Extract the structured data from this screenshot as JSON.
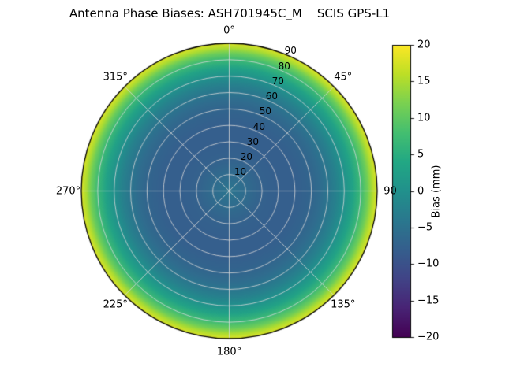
{
  "chart_data": {
    "type": "heatmap",
    "projection": "polar",
    "title": "Antenna Phase Biases: ASH701945C_M    SCIS GPS-L1",
    "azimuth_ticks": [
      {
        "angle_deg": 0,
        "label": "0°"
      },
      {
        "angle_deg": 45,
        "label": "45°"
      },
      {
        "angle_deg": 90,
        "label": "90"
      },
      {
        "angle_deg": 135,
        "label": "135°"
      },
      {
        "angle_deg": 180,
        "label": "180°"
      },
      {
        "angle_deg": 225,
        "label": "225°"
      },
      {
        "angle_deg": 270,
        "label": "270°"
      },
      {
        "angle_deg": 315,
        "label": "315°"
      }
    ],
    "radial_axis": {
      "max": 90,
      "ring_interval": 10,
      "label_angle_deg": 22.5
    },
    "radial_ticks": [
      {
        "value": 10,
        "label": "10"
      },
      {
        "value": 20,
        "label": "20"
      },
      {
        "value": 30,
        "label": "30"
      },
      {
        "value": 40,
        "label": "40"
      },
      {
        "value": 50,
        "label": "50"
      },
      {
        "value": 60,
        "label": "60"
      },
      {
        "value": 70,
        "label": "70"
      },
      {
        "value": 80,
        "label": "80"
      },
      {
        "value": 90,
        "label": "90"
      }
    ],
    "bias_profile_by_zenith": [
      {
        "zenith": 0,
        "bias": -4.5
      },
      {
        "zenith": 10,
        "bias": -6
      },
      {
        "zenith": 20,
        "bias": -7.5
      },
      {
        "zenith": 30,
        "bias": -8
      },
      {
        "zenith": 40,
        "bias": -8
      },
      {
        "zenith": 50,
        "bias": -7
      },
      {
        "zenith": 55,
        "bias": -6
      },
      {
        "zenith": 60,
        "bias": -4.5
      },
      {
        "zenith": 65,
        "bias": -2.5
      },
      {
        "zenith": 70,
        "bias": 0
      },
      {
        "zenith": 75,
        "bias": 3
      },
      {
        "zenith": 80,
        "bias": 7
      },
      {
        "zenith": 84,
        "bias": 11
      },
      {
        "zenith": 87,
        "bias": 15
      },
      {
        "zenith": 90,
        "bias": 18
      }
    ],
    "colorbar": {
      "label": "Bias (mm)",
      "min": -20,
      "max": 20,
      "ticks": [
        {
          "value": 20,
          "label": "20"
        },
        {
          "value": 15,
          "label": "15"
        },
        {
          "value": 10,
          "label": "10"
        },
        {
          "value": 5,
          "label": "5"
        },
        {
          "value": 0,
          "label": "0"
        },
        {
          "value": -5,
          "label": "−5"
        },
        {
          "value": -10,
          "label": "−10"
        },
        {
          "value": -15,
          "label": "−15"
        },
        {
          "value": -20,
          "label": "−20"
        }
      ]
    },
    "colormap": {
      "name": "viridis",
      "stops": [
        "#440154",
        "#482475",
        "#414487",
        "#355f8d",
        "#2a788e",
        "#21918c",
        "#22a884",
        "#44bf70",
        "#7ad151",
        "#bddf26",
        "#fde725"
      ]
    },
    "grid": {
      "color": "#d9d9d9"
    }
  }
}
